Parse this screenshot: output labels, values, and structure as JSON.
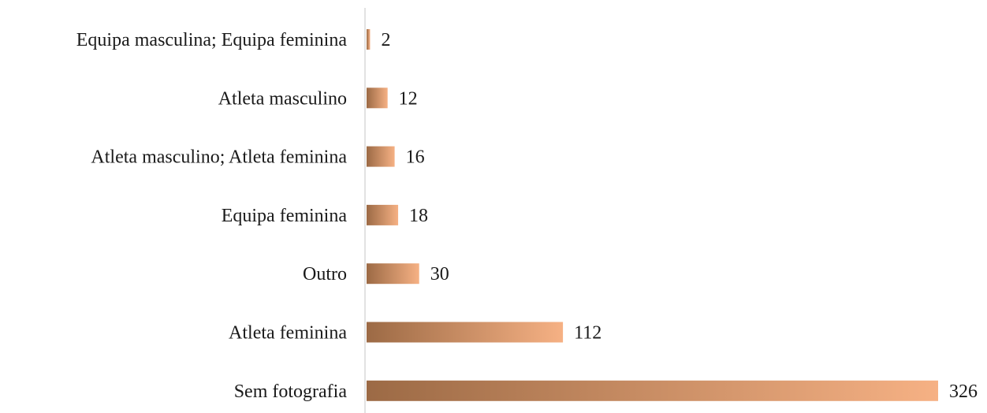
{
  "chart_data": {
    "type": "bar",
    "orientation": "horizontal",
    "categories": [
      "Equipa masculina; Equipa feminina",
      "Atleta masculino",
      "Atleta masculino; Atleta feminina",
      "Equipa feminina",
      "Outro",
      "Atleta feminina",
      "Sem fotografia"
    ],
    "values": [
      2,
      12,
      16,
      18,
      30,
      112,
      326
    ],
    "title": "",
    "xlabel": "",
    "ylabel": "",
    "xlim": [
      0,
      326
    ],
    "grid": false,
    "legend": "none",
    "data_labels": true
  },
  "colors": {
    "bar_gradient_start": "#9c6a45",
    "bar_gradient_end": "#f6b184",
    "axis_line": "#d9d9d9",
    "text": "#1a1a1a",
    "background": "#ffffff"
  }
}
